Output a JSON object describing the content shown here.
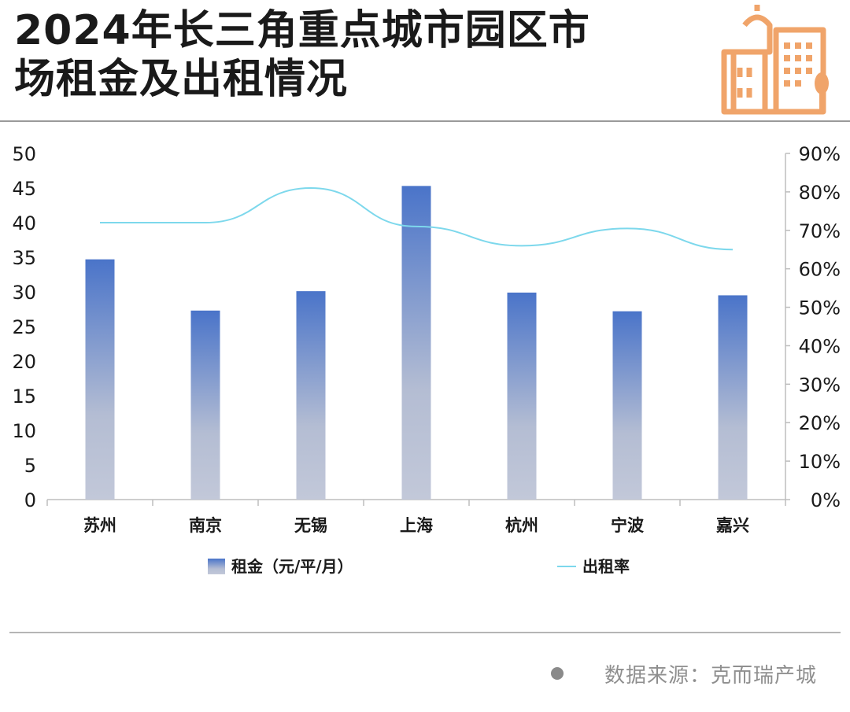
{
  "header": {
    "title": "2024年长三角重点城市园区市\n场租金及出租情况"
  },
  "logo": {
    "icon": "city-buildings-icon",
    "color": "#f0a46a"
  },
  "chart_data": {
    "type": "bar",
    "categories": [
      "苏州",
      "南京",
      "无锡",
      "上海",
      "杭州",
      "宁波",
      "嘉兴"
    ],
    "series": [
      {
        "name": "租金（元/平/月）",
        "type": "bar",
        "axis": "left",
        "values": [
          34.7,
          27.3,
          30.1,
          45.3,
          29.9,
          27.2,
          29.5
        ]
      },
      {
        "name": "出租率",
        "type": "line",
        "axis": "right",
        "values": [
          72,
          72,
          81,
          71,
          66,
          70.5,
          65
        ]
      }
    ],
    "y_left": {
      "ylim": [
        0,
        50
      ],
      "ticks": [
        "0",
        "5",
        "10",
        "15",
        "20",
        "25",
        "30",
        "35",
        "40",
        "45",
        "50"
      ]
    },
    "y_right": {
      "ylim": [
        0,
        90
      ],
      "ticks": [
        "0%",
        "10%",
        "20%",
        "30%",
        "40%",
        "50%",
        "60%",
        "70%",
        "80%",
        "90%"
      ]
    },
    "colors": {
      "bar_top": "#4a74c9",
      "bar_bottom": "#c2c8d9",
      "line": "#7dd8ec"
    },
    "legend_position": "bottom",
    "grid": false
  },
  "source": {
    "text": "数据来源：克而瑞产城"
  }
}
